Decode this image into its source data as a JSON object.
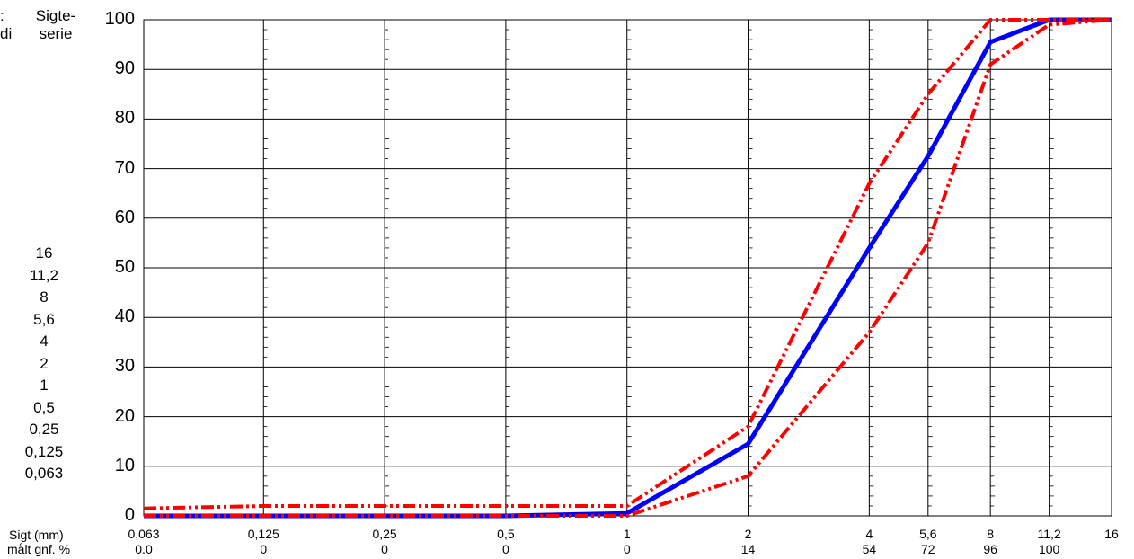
{
  "header": {
    "cut_left_top": ":",
    "cut_left_bottom": "di",
    "sieve_series_label": "Sigte-\nserie"
  },
  "sieve_series": [
    "16",
    "11,2",
    "8",
    "5,6",
    "4",
    "2",
    "1",
    "0,5",
    "0,25",
    "0,125",
    "0,063"
  ],
  "footer": {
    "sieve_row_label": "Sigt (mm)",
    "passing_row_label": "målt gnf. %",
    "passing_values": [
      "0.0",
      "0",
      "0",
      "0",
      "0",
      "14",
      "54",
      "72",
      "96",
      "100",
      ""
    ]
  },
  "colors": {
    "measured": "#0000ff",
    "limits": "#ff0000",
    "grid": "#000000"
  },
  "chart_data": {
    "type": "line",
    "x_categories": [
      "0,063",
      "0,125",
      "0,25",
      "0,5",
      "1",
      "2",
      "4",
      "5,6",
      "8",
      "11,2",
      "16"
    ],
    "x_values": [
      0.063,
      0.125,
      0.25,
      0.5,
      1,
      2,
      4,
      5.6,
      8,
      11.2,
      16
    ],
    "x_scale": "log",
    "ylim": [
      0,
      100
    ],
    "yticks": [
      0,
      10,
      20,
      30,
      40,
      50,
      60,
      70,
      80,
      90,
      100
    ],
    "grid": true,
    "series": [
      {
        "role": "measured",
        "style": "solid",
        "color": "#0000ff",
        "values": [
          0,
          0,
          0,
          0,
          0.5,
          14.5,
          54,
          72.5,
          95.5,
          100,
          100
        ]
      },
      {
        "role": "upper-limit",
        "style": "dash-dot-dot",
        "color": "#ff0000",
        "values": [
          1.5,
          2,
          2,
          2,
          2,
          18,
          67,
          85,
          100,
          100,
          100
        ]
      },
      {
        "role": "lower-limit",
        "style": "dash-dot-dot",
        "color": "#ff0000",
        "values": [
          0,
          0,
          0,
          0,
          0,
          8,
          37,
          55,
          91,
          99,
          100
        ]
      }
    ]
  }
}
